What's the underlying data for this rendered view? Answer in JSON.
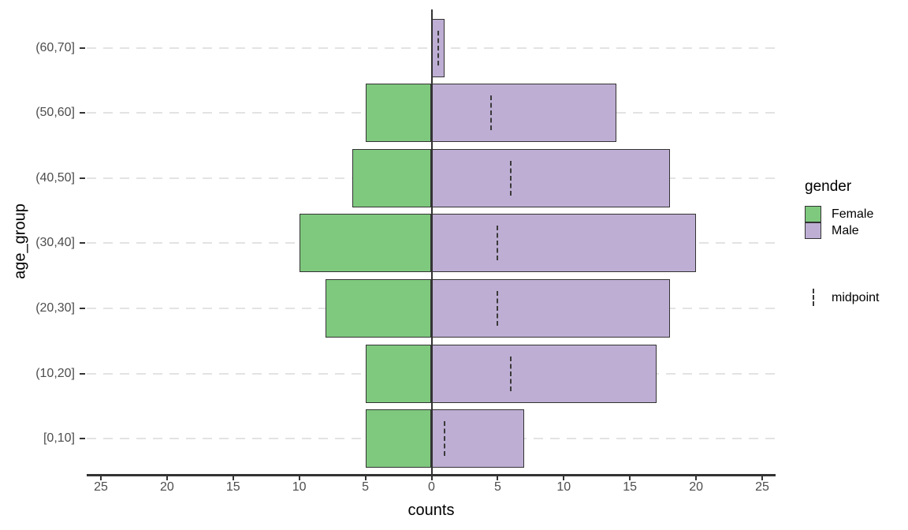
{
  "chart_data": {
    "type": "bar",
    "variant": "population-pyramid-diverging-horizontal",
    "title": "",
    "xlabel": "counts",
    "ylabel": "age_group",
    "categories": [
      "(60,70]",
      "(50,60]",
      "(40,50]",
      "(30,40]",
      "(20,30]",
      "(10,20]",
      "[0,10]"
    ],
    "series": [
      {
        "name": "Female",
        "direction": "left",
        "color": "#7FC97F",
        "values": [
          0,
          5,
          6,
          10,
          8,
          5,
          5
        ]
      },
      {
        "name": "Male",
        "direction": "right",
        "color": "#BEAED4",
        "values": [
          1,
          14,
          18,
          20,
          18,
          17,
          7
        ]
      }
    ],
    "midpoint_series": {
      "name": "midpoint",
      "marker": "dashed-vertical-line",
      "values": [
        0.5,
        4.5,
        6,
        5,
        5,
        6,
        1
      ]
    },
    "x_ticks": {
      "values": [
        -25,
        -20,
        -15,
        -10,
        -5,
        0,
        5,
        10,
        15,
        20,
        25
      ],
      "labels": [
        "25",
        "20",
        "15",
        "10",
        "5",
        "0",
        "5",
        "10",
        "15",
        "20",
        "25"
      ]
    },
    "xlim": [
      -26,
      26
    ],
    "grid": "horizontal-dashed",
    "legend": {
      "title": "gender",
      "position": "right",
      "entries": [
        {
          "label": "Female",
          "color": "#7FC97F"
        },
        {
          "label": "Male",
          "color": "#BEAED4"
        }
      ],
      "midpoint_label": "midpoint"
    }
  },
  "style": {
    "background": "#FFFFFF",
    "axis_line_color": "#333333",
    "tick_label_color": "#4D4D4D",
    "gridline_color": "#E3E3E3",
    "bar_border_color": "#333333",
    "midpoint_dash_color": "#3A3A3A"
  }
}
